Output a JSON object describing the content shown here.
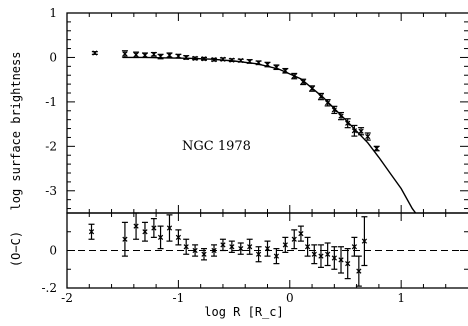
{
  "chart_data": [
    {
      "type": "scatter",
      "title": "",
      "xlabel": "",
      "ylabel": "log surface brightness",
      "annotation": "NGC 1978",
      "xlim": [
        -2,
        1.6
      ],
      "ylim": [
        -3.5,
        1
      ],
      "x_ticks": [],
      "y_ticks": [
        "1",
        "0",
        "-1",
        "-2",
        "-3"
      ],
      "grid": false,
      "error_bars": true,
      "points": [
        {
          "x": -1.75,
          "y": 0.1,
          "err": 0.03
        },
        {
          "x": -1.48,
          "y": 0.08,
          "err": 0.07
        },
        {
          "x": -1.38,
          "y": 0.06,
          "err": 0.06
        },
        {
          "x": -1.3,
          "y": 0.05,
          "err": 0.05
        },
        {
          "x": -1.22,
          "y": 0.07,
          "err": 0.04
        },
        {
          "x": -1.16,
          "y": 0.02,
          "err": 0.05
        },
        {
          "x": -1.08,
          "y": 0.05,
          "err": 0.05
        },
        {
          "x": -1.0,
          "y": 0.03,
          "err": 0.04
        },
        {
          "x": -0.93,
          "y": 0.0,
          "err": 0.04
        },
        {
          "x": -0.85,
          "y": -0.02,
          "err": 0.03
        },
        {
          "x": -0.77,
          "y": -0.03,
          "err": 0.03
        },
        {
          "x": -0.68,
          "y": -0.05,
          "err": 0.03
        },
        {
          "x": -0.6,
          "y": -0.04,
          "err": 0.03
        },
        {
          "x": -0.52,
          "y": -0.06,
          "err": 0.03
        },
        {
          "x": -0.44,
          "y": -0.07,
          "err": 0.03
        },
        {
          "x": -0.36,
          "y": -0.09,
          "err": 0.04
        },
        {
          "x": -0.28,
          "y": -0.12,
          "err": 0.04
        },
        {
          "x": -0.2,
          "y": -0.16,
          "err": 0.05
        },
        {
          "x": -0.12,
          "y": -0.22,
          "err": 0.05
        },
        {
          "x": -0.04,
          "y": -0.3,
          "err": 0.05
        },
        {
          "x": 0.04,
          "y": -0.42,
          "err": 0.06
        },
        {
          "x": 0.12,
          "y": -0.55,
          "err": 0.06
        },
        {
          "x": 0.2,
          "y": -0.7,
          "err": 0.06
        },
        {
          "x": 0.28,
          "y": -0.88,
          "err": 0.07
        },
        {
          "x": 0.34,
          "y": -1.02,
          "err": 0.07
        },
        {
          "x": 0.4,
          "y": -1.18,
          "err": 0.08
        },
        {
          "x": 0.46,
          "y": -1.32,
          "err": 0.08
        },
        {
          "x": 0.52,
          "y": -1.48,
          "err": 0.1
        },
        {
          "x": 0.58,
          "y": -1.65,
          "err": 0.12
        },
        {
          "x": 0.64,
          "y": -1.66,
          "err": 0.08
        },
        {
          "x": 0.7,
          "y": -1.78,
          "err": 0.08
        },
        {
          "x": 0.78,
          "y": -2.05,
          "err": 0.05
        }
      ],
      "model_curve": [
        {
          "x": -1.5,
          "y": 0.0
        },
        {
          "x": -1.3,
          "y": 0.0
        },
        {
          "x": -1.1,
          "y": -0.01
        },
        {
          "x": -0.9,
          "y": -0.02
        },
        {
          "x": -0.7,
          "y": -0.04
        },
        {
          "x": -0.5,
          "y": -0.08
        },
        {
          "x": -0.3,
          "y": -0.14
        },
        {
          "x": -0.1,
          "y": -0.26
        },
        {
          "x": 0.1,
          "y": -0.48
        },
        {
          "x": 0.3,
          "y": -0.9
        },
        {
          "x": 0.5,
          "y": -1.4
        },
        {
          "x": 0.7,
          "y": -1.92
        },
        {
          "x": 0.8,
          "y": -2.25
        },
        {
          "x": 0.9,
          "y": -2.6
        },
        {
          "x": 1.0,
          "y": -2.95
        },
        {
          "x": 1.1,
          "y": -3.4
        },
        {
          "x": 1.13,
          "y": -3.5
        }
      ]
    },
    {
      "type": "scatter",
      "title": "",
      "xlabel": "log R  [R_c]",
      "ylabel": "(O−C)",
      "xlim": [
        -2,
        1.6
      ],
      "ylim": [
        -0.2,
        0.2
      ],
      "x_ticks": [
        "-2",
        "-1",
        "0",
        "1"
      ],
      "y_ticks": [
        "0",
        "-.2"
      ],
      "grid": false,
      "error_bars": true,
      "reference_line": 0,
      "points": [
        {
          "x": -1.78,
          "y": 0.1,
          "err": 0.04
        },
        {
          "x": -1.48,
          "y": 0.06,
          "err": 0.09
        },
        {
          "x": -1.38,
          "y": 0.13,
          "err": 0.07
        },
        {
          "x": -1.3,
          "y": 0.1,
          "err": 0.05
        },
        {
          "x": -1.22,
          "y": 0.12,
          "err": 0.05
        },
        {
          "x": -1.16,
          "y": 0.07,
          "err": 0.06
        },
        {
          "x": -1.08,
          "y": 0.12,
          "err": 0.07
        },
        {
          "x": -1.0,
          "y": 0.07,
          "err": 0.04
        },
        {
          "x": -0.93,
          "y": 0.02,
          "err": 0.04
        },
        {
          "x": -0.85,
          "y": 0.0,
          "err": 0.03
        },
        {
          "x": -0.77,
          "y": -0.02,
          "err": 0.03
        },
        {
          "x": -0.68,
          "y": 0.0,
          "err": 0.03
        },
        {
          "x": -0.6,
          "y": 0.03,
          "err": 0.03
        },
        {
          "x": -0.52,
          "y": 0.02,
          "err": 0.03
        },
        {
          "x": -0.44,
          "y": 0.01,
          "err": 0.03
        },
        {
          "x": -0.36,
          "y": 0.02,
          "err": 0.04
        },
        {
          "x": -0.28,
          "y": -0.02,
          "err": 0.04
        },
        {
          "x": -0.2,
          "y": 0.01,
          "err": 0.04
        },
        {
          "x": -0.12,
          "y": -0.03,
          "err": 0.04
        },
        {
          "x": -0.04,
          "y": 0.03,
          "err": 0.04
        },
        {
          "x": 0.04,
          "y": 0.06,
          "err": 0.05
        },
        {
          "x": 0.1,
          "y": 0.09,
          "err": 0.04
        },
        {
          "x": 0.16,
          "y": 0.02,
          "err": 0.05
        },
        {
          "x": 0.22,
          "y": -0.02,
          "err": 0.05
        },
        {
          "x": 0.28,
          "y": -0.03,
          "err": 0.06
        },
        {
          "x": 0.34,
          "y": -0.02,
          "err": 0.06
        },
        {
          "x": 0.4,
          "y": -0.04,
          "err": 0.06
        },
        {
          "x": 0.46,
          "y": -0.05,
          "err": 0.07
        },
        {
          "x": 0.52,
          "y": -0.07,
          "err": 0.08
        },
        {
          "x": 0.58,
          "y": 0.02,
          "err": 0.05
        },
        {
          "x": 0.62,
          "y": -0.11,
          "err": 0.08
        },
        {
          "x": 0.67,
          "y": 0.05,
          "err": 0.13
        }
      ]
    }
  ]
}
